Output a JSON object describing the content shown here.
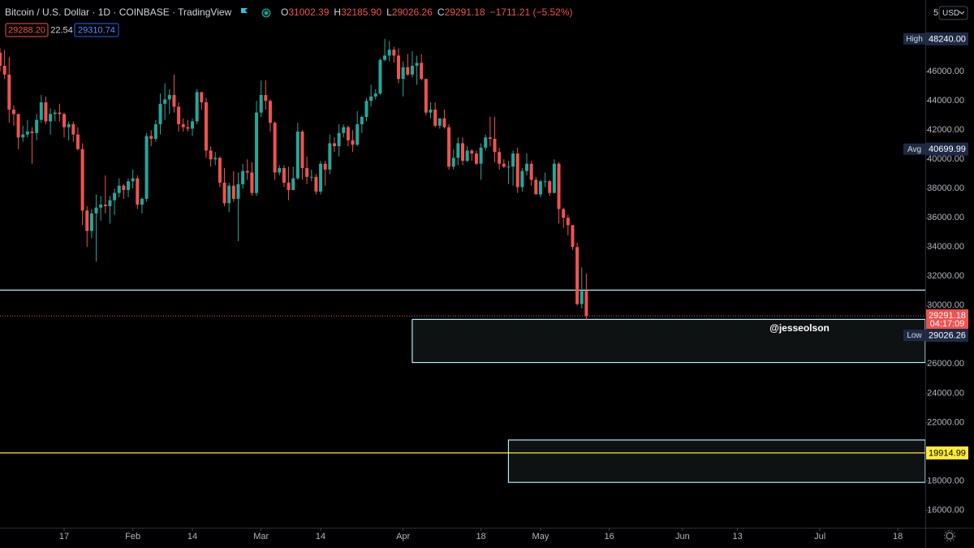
{
  "header": {
    "symbol": "Bitcoin / U.S. Dollar · 1D · COINBASE · TradingView",
    "ohlc": [
      {
        "prefix": "O",
        "value": "31002.39"
      },
      {
        "prefix": "H",
        "value": "32185.90"
      },
      {
        "prefix": "L",
        "value": "29026.26"
      },
      {
        "prefix": "C",
        "value": "29291.18"
      }
    ],
    "change": "−1711.21 (−5.52%)",
    "bid": "29288.20",
    "spread": "22.54",
    "ask": "29310.74",
    "scale_menu": "5",
    "currency": "USD",
    "watermark": "@jesseolson"
  },
  "chart_data": {
    "type": "candlestick",
    "up_color": "#26a69a",
    "down_color": "#ef5350",
    "x": [
      "01-03",
      "01-04",
      "01-05",
      "01-06",
      "01-07",
      "01-08",
      "01-09",
      "01-10",
      "01-11",
      "01-12",
      "01-13",
      "01-14",
      "01-15",
      "01-16",
      "01-17",
      "01-18",
      "01-19",
      "01-20",
      "01-21",
      "01-22",
      "01-23",
      "01-24",
      "01-25",
      "01-26",
      "01-27",
      "01-28",
      "01-29",
      "01-30",
      "01-31",
      "02-01",
      "02-02",
      "02-03",
      "02-04",
      "02-05",
      "02-06",
      "02-07",
      "02-08",
      "02-09",
      "02-10",
      "02-11",
      "02-12",
      "02-13",
      "02-14",
      "02-15",
      "02-16",
      "02-17",
      "02-18",
      "02-19",
      "02-20",
      "02-21",
      "02-22",
      "02-23",
      "02-24",
      "02-25",
      "02-26",
      "02-27",
      "02-28",
      "03-01",
      "03-02",
      "03-03",
      "03-04",
      "03-05",
      "03-06",
      "03-07",
      "03-08",
      "03-09",
      "03-10",
      "03-11",
      "03-12",
      "03-13",
      "03-14",
      "03-15",
      "03-16",
      "03-17",
      "03-18",
      "03-19",
      "03-20",
      "03-21",
      "03-22",
      "03-23",
      "03-24",
      "03-25",
      "03-26",
      "03-27",
      "03-28",
      "03-29",
      "03-30",
      "03-31",
      "04-01",
      "04-02",
      "04-03",
      "04-04",
      "04-05",
      "04-06",
      "04-07",
      "04-08",
      "04-09",
      "04-10",
      "04-11",
      "04-12",
      "04-13",
      "04-14",
      "04-15",
      "04-16",
      "04-17",
      "04-18",
      "04-19",
      "04-20",
      "04-21",
      "04-22",
      "04-23",
      "04-24",
      "04-25",
      "04-26",
      "04-27",
      "04-28",
      "04-29",
      "04-30",
      "05-01",
      "05-02",
      "05-03",
      "05-04",
      "05-05",
      "05-06",
      "05-07",
      "05-08",
      "05-09",
      "05-10",
      "05-11"
    ],
    "open": [
      47300,
      46400,
      45800,
      43400,
      43100,
      41500,
      41700,
      41900,
      41800,
      42700,
      43900,
      42600,
      43100,
      43200,
      43100,
      42200,
      42400,
      41700,
      40700,
      36500,
      35100,
      36300,
      36700,
      36900,
      36800,
      37200,
      37700,
      38200,
      37900,
      38500,
      38700,
      36900,
      37300,
      41600,
      41400,
      42400,
      43800,
      44100,
      44400,
      43600,
      42400,
      42200,
      42100,
      42600,
      44600,
      43900,
      40600,
      40000,
      40100,
      38400,
      37000,
      38200,
      37300,
      38300,
      39200,
      39100,
      37700,
      43200,
      44400,
      44000,
      42500,
      39100,
      39400,
      38400,
      37900,
      38700,
      41900,
      39400,
      38800,
      38800,
      37800,
      39700,
      39300,
      41100,
      40900,
      41800,
      42200,
      41300,
      41000,
      42400,
      42900,
      44000,
      44300,
      44500,
      46800,
      47100,
      47500,
      47100,
      45500,
      46300,
      45800,
      46400,
      46600,
      45500,
      43200,
      43400,
      42300,
      42800,
      42200,
      39500,
      40100,
      41100,
      39900,
      40600,
      40400,
      39700,
      40800,
      41500,
      41400,
      40500,
      39700,
      39500,
      39500,
      40400,
      38100,
      39200,
      39700,
      38600,
      37600,
      38500,
      38500,
      37700,
      39700,
      36600,
      36000,
      35500,
      34000,
      30100,
      31002.39
    ],
    "high": [
      47600,
      47500,
      47000,
      43700,
      43100,
      42300,
      42700,
      42200,
      43100,
      44400,
      44300,
      43500,
      43400,
      43800,
      43200,
      42600,
      42600,
      42200,
      41100,
      36800,
      36600,
      37600,
      37500,
      38900,
      37500,
      38000,
      38700,
      38300,
      38700,
      39300,
      38900,
      37400,
      41800,
      42000,
      42700,
      44500,
      45200,
      44800,
      45800,
      43900,
      42800,
      42700,
      42800,
      44800,
      44600,
      44200,
      40900,
      40500,
      40200,
      39400,
      38400,
      39200,
      39100,
      39700,
      40000,
      39800,
      44000,
      45400,
      45400,
      44100,
      42600,
      39600,
      39600,
      39500,
      39500,
      42500,
      42000,
      40200,
      39300,
      39000,
      39900,
      39900,
      41700,
      41500,
      42400,
      42400,
      42300,
      42000,
      43300,
      43000,
      44200,
      45100,
      44800,
      46900,
      48240,
      48100,
      47700,
      47600,
      46700,
      47200,
      47400,
      47100,
      47200,
      45500,
      43900,
      43900,
      42800,
      43400,
      42400,
      40700,
      41500,
      41500,
      40900,
      40700,
      40600,
      41100,
      41700,
      42900,
      42900,
      40800,
      40000,
      39900,
      40600,
      40800,
      39400,
      40400,
      39900,
      38800,
      38600,
      39100,
      38600,
      40000,
      39800,
      36700,
      36200,
      35500,
      34300,
      32600,
      32185.9
    ],
    "low": [
      46000,
      45500,
      42500,
      42300,
      40700,
      41200,
      41500,
      39700,
      41300,
      42500,
      42400,
      41700,
      42600,
      42600,
      41500,
      41300,
      41200,
      40600,
      35500,
      34000,
      34600,
      33000,
      35800,
      36300,
      35600,
      36200,
      37400,
      37300,
      37400,
      38000,
      36600,
      36300,
      37100,
      40900,
      41200,
      41700,
      42700,
      43100,
      43200,
      41900,
      41900,
      41900,
      41600,
      42400,
      43400,
      40100,
      39500,
      39600,
      38100,
      36800,
      36400,
      37100,
      34400,
      38000,
      38600,
      37500,
      37500,
      42900,
      43400,
      41900,
      38600,
      38900,
      38100,
      37200,
      37900,
      38600,
      38600,
      38300,
      38500,
      37600,
      37600,
      38200,
      39000,
      40500,
      40200,
      41500,
      40900,
      40500,
      40900,
      41800,
      42600,
      43600,
      44100,
      44400,
      46700,
      46700,
      46600,
      45200,
      44300,
      45700,
      45600,
      45100,
      45400,
      43000,
      42800,
      42200,
      42100,
      42100,
      39300,
      39300,
      39600,
      39600,
      39800,
      39900,
      39600,
      38600,
      40600,
      40900,
      39800,
      39300,
      39400,
      38300,
      38200,
      37700,
      37800,
      38900,
      38200,
      37600,
      37400,
      38100,
      37500,
      37700,
      35600,
      35300,
      34800,
      33800,
      30000,
      29800,
      29026.26
    ],
    "close": [
      46400,
      45800,
      43400,
      43100,
      41500,
      41700,
      41900,
      41800,
      42700,
      43900,
      42600,
      43100,
      43200,
      43100,
      42200,
      42400,
      41700,
      40700,
      36500,
      35100,
      36300,
      36700,
      36900,
      36800,
      37200,
      37700,
      38200,
      37900,
      38500,
      38700,
      36900,
      37300,
      41600,
      41400,
      42400,
      43800,
      44100,
      44400,
      43600,
      42400,
      42200,
      42100,
      42600,
      44600,
      43900,
      40600,
      40000,
      40100,
      38400,
      37000,
      38200,
      37300,
      38300,
      39200,
      39100,
      37700,
      43200,
      44400,
      44000,
      42500,
      39100,
      39400,
      38400,
      37900,
      38700,
      41900,
      39400,
      38800,
      38800,
      37800,
      39700,
      39300,
      41100,
      40900,
      41800,
      42200,
      41300,
      41000,
      42400,
      42900,
      44000,
      44300,
      44500,
      46800,
      47100,
      47500,
      47100,
      45500,
      46300,
      45800,
      46400,
      46600,
      45500,
      43200,
      43400,
      42300,
      42800,
      42200,
      39500,
      40100,
      41100,
      39900,
      40600,
      40400,
      39700,
      40800,
      41500,
      41400,
      40500,
      39700,
      39500,
      39500,
      40400,
      38100,
      39200,
      39700,
      38600,
      37600,
      38500,
      38500,
      37700,
      39700,
      36600,
      36000,
      35500,
      34000,
      30100,
      31000,
      29291.18
    ],
    "xlim": [
      "01-03",
      "07-24"
    ],
    "xticks": [
      {
        "value": "01-17",
        "label": "17"
      },
      {
        "value": "02-01",
        "label": "Feb"
      },
      {
        "value": "02-14",
        "label": "14"
      },
      {
        "value": "03-01",
        "label": "Mar"
      },
      {
        "value": "03-14",
        "label": "14"
      },
      {
        "value": "04-01",
        "label": "Apr"
      },
      {
        "value": "04-18",
        "label": "18"
      },
      {
        "value": "05-01",
        "label": "May"
      },
      {
        "value": "05-16",
        "label": "16"
      },
      {
        "value": "06-01",
        "label": "Jun"
      },
      {
        "value": "06-13",
        "label": "13"
      },
      {
        "value": "07-01",
        "label": "Jul"
      },
      {
        "value": "07-18",
        "label": "18"
      }
    ],
    "ylim": [
      14800,
      50900
    ],
    "yticks": [
      {
        "value": 16000,
        "label": "16000.00"
      },
      {
        "value": 18000,
        "label": "18000.00"
      },
      {
        "value": 20000,
        "label": "20000.00"
      },
      {
        "value": 22000,
        "label": "22000.00"
      },
      {
        "value": 24000,
        "label": "24000.00"
      },
      {
        "value": 26000,
        "label": "26000.00"
      },
      {
        "value": 28000,
        "label": "28000.00"
      },
      {
        "value": 30000,
        "label": "30000.00"
      },
      {
        "value": 32000,
        "label": "32000.00"
      },
      {
        "value": 34000,
        "label": "34000.00"
      },
      {
        "value": 36000,
        "label": "36000.00"
      },
      {
        "value": 38000,
        "label": "38000.00"
      },
      {
        "value": 40000,
        "label": "40000.00"
      },
      {
        "value": 42000,
        "label": "42000.00"
      },
      {
        "value": 44000,
        "label": "44000.00"
      },
      {
        "value": 46000,
        "label": "46000.00"
      }
    ],
    "stats": [
      {
        "name": "High",
        "value": 48240,
        "label": "48240.00"
      },
      {
        "name": "Avg",
        "value": 40699.99,
        "label": "40699.99"
      },
      {
        "name": "Low",
        "value": 29026.26,
        "label": "29026.26"
      }
    ],
    "last_price": {
      "value": 29291.18,
      "label": "29291.18",
      "countdown": "04:17:09",
      "color": "#ef5350"
    },
    "hlines": [
      {
        "value": 31050,
        "color": "#b2ebf2"
      },
      {
        "value": 19914.99,
        "label": "19914.99",
        "color": "#ffeb3b"
      }
    ],
    "boxes": [
      {
        "from": "04-03",
        "top": 29050,
        "bottom": 26100,
        "color": "#b2ebf2"
      },
      {
        "from": "04-24",
        "top": 20800,
        "bottom": 17900,
        "color": "#b2ebf2"
      }
    ]
  }
}
